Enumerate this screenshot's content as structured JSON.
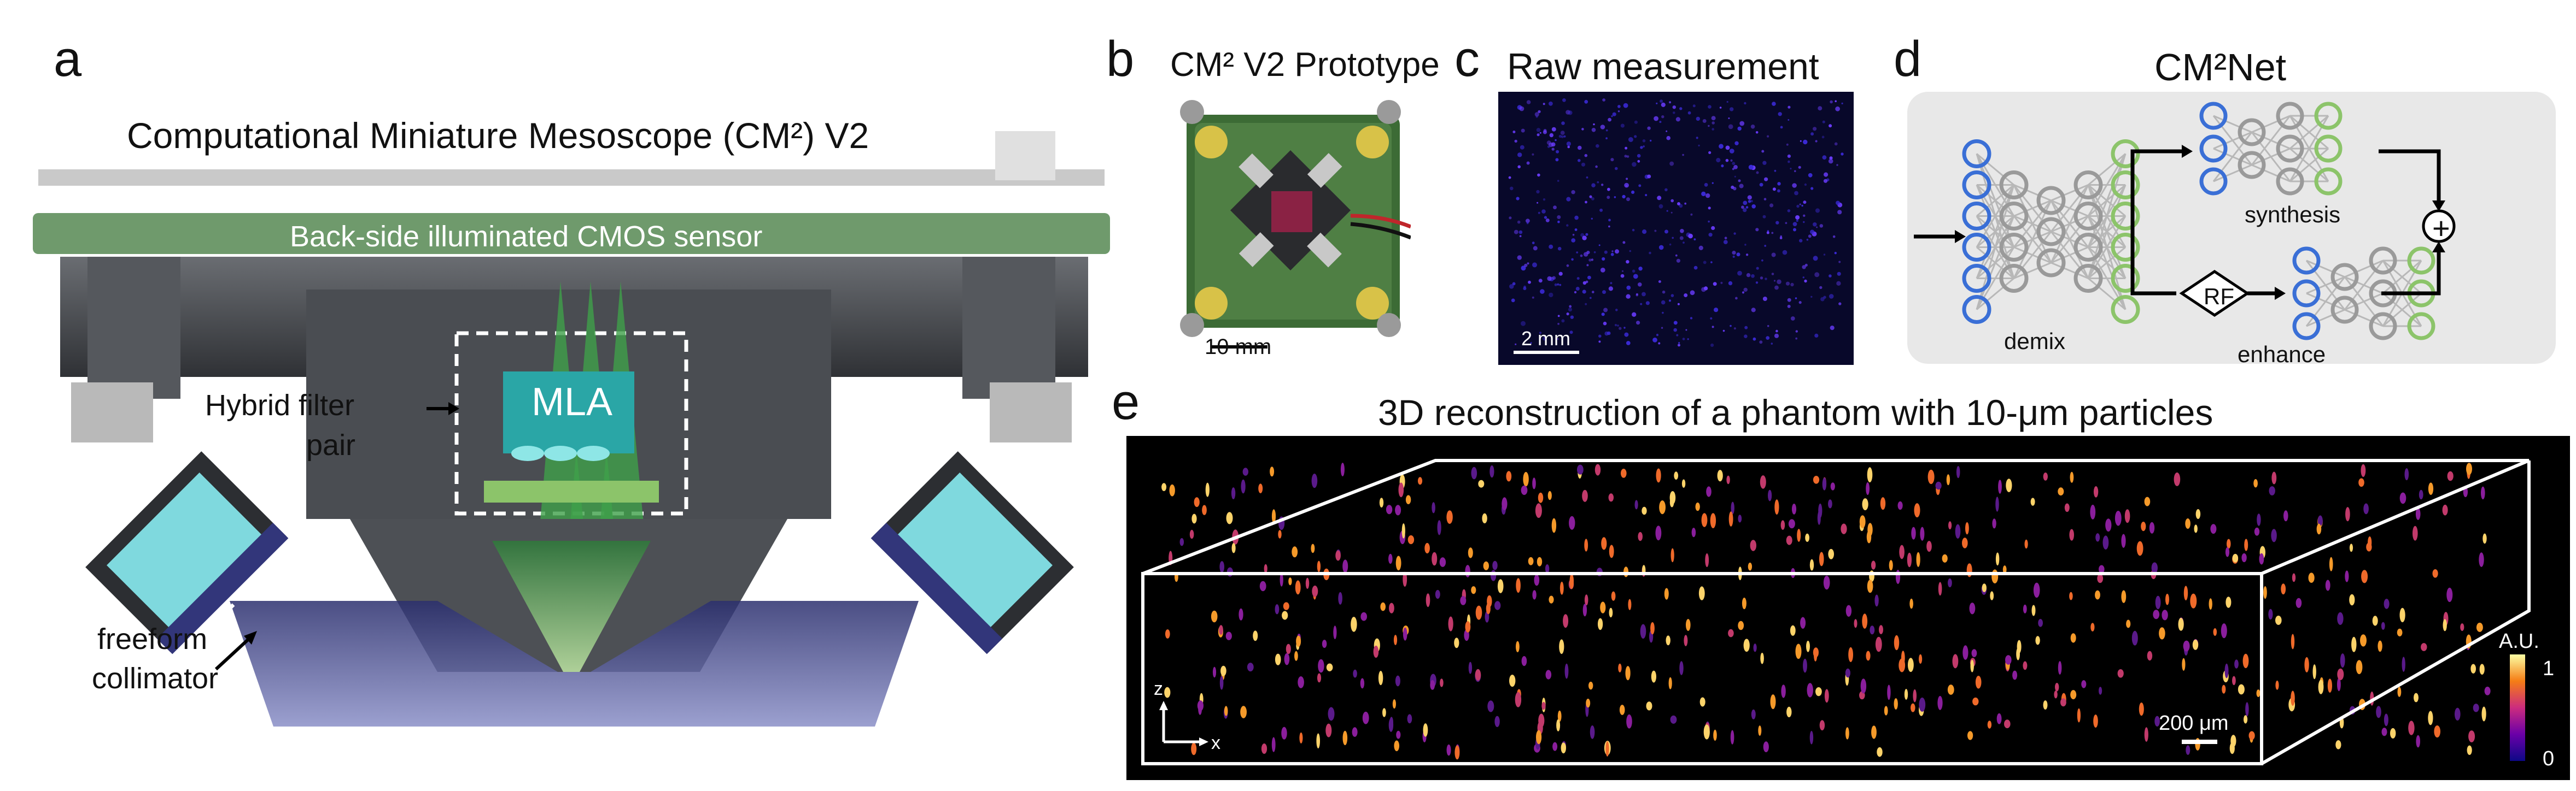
{
  "panels": {
    "a": {
      "letter": "a",
      "title": "Computational Miniature Mesoscope (CM²) V2",
      "sensor_label": "Back-side illuminated CMOS sensor",
      "mla_label": "MLA",
      "filter_label_line1": "Hybrid filter",
      "filter_label_line2": "pair",
      "collimator_label_line1": "freeform",
      "collimator_label_line2": "collimator"
    },
    "b": {
      "letter": "b",
      "title": "CM² V2 Prototype",
      "scalebar": "10 mm"
    },
    "c": {
      "letter": "c",
      "title": "Raw measurement",
      "scalebar": "2 mm"
    },
    "d": {
      "letter": "d",
      "title": "CM²Net",
      "demix": "demix",
      "synthesis": "synthesis",
      "enhance": "enhance",
      "rf": "RF",
      "plus": "+"
    },
    "e": {
      "letter": "e",
      "title": "3D reconstruction of a phantom with 10-μm particles",
      "scalebar": "200 μm",
      "axis_z": "z",
      "axis_x": "x",
      "colorbar_title": "A.U.",
      "colorbar_max": "1",
      "colorbar_min": "0"
    }
  },
  "colors": {
    "sensor_green": "#6f9a6c",
    "mla_teal": "#2aa6a6",
    "filter_green": "#8cc46a",
    "housing_dark": "#3f4145",
    "housing_mid": "#5b5e63",
    "collimator_cyan": "#7fd9de",
    "led_blue": "#32367a",
    "net_blue": "#3a6fd6",
    "net_green": "#8cc46a",
    "net_gray": "#9a9a9a",
    "raw_bg": "#08082a",
    "raw_dot": "#6a3cff",
    "recon_bg": "#000000"
  }
}
